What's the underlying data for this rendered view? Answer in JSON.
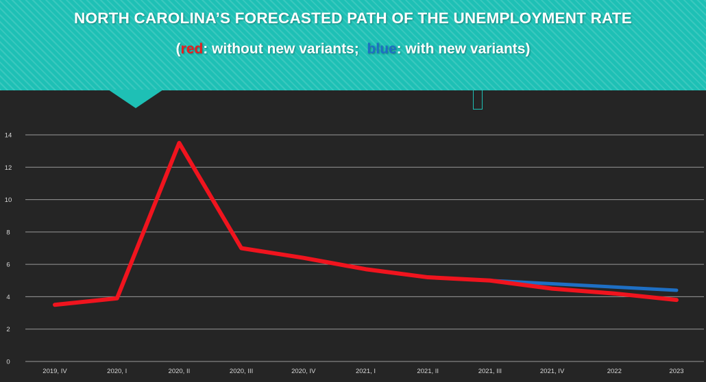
{
  "banner": {
    "title": "NORTH CAROLINA’S FORECASTED PATH OF THE UNEMPLOYMENT RATE",
    "subtitle_open": "(",
    "subtitle_red_word": "red",
    "subtitle_mid": ": without new variants;  ",
    "subtitle_blue_word": "blue",
    "subtitle_end": ": with new variants)"
  },
  "colors": {
    "banner": "#1ec0b5",
    "background": "#252525",
    "red_series": "#f0141e",
    "blue_series": "#1e6fc4",
    "gridline": "#9a9a9a"
  },
  "chart_data": {
    "type": "line",
    "categories": [
      "2019, IV",
      "2020, I",
      "2020, II",
      "2020, III",
      "2020, IV",
      "2021, I",
      "2021, II",
      "2021, III",
      "2021, IV",
      "2022",
      "2023"
    ],
    "yticks": [
      "0",
      "2",
      "4",
      "6",
      "8",
      "10",
      "12",
      "14"
    ],
    "ylim": [
      0,
      14
    ],
    "grid": true,
    "series": [
      {
        "key": "red",
        "color": "#f0141e",
        "values": [
          3.5,
          3.9,
          13.5,
          7.0,
          6.4,
          5.7,
          5.2,
          5.0,
          4.5,
          4.2,
          3.8
        ]
      },
      {
        "key": "blue",
        "color": "#1e6fc4",
        "values": [
          null,
          null,
          null,
          null,
          null,
          null,
          null,
          5.0,
          4.8,
          4.6,
          4.4
        ]
      }
    ]
  }
}
